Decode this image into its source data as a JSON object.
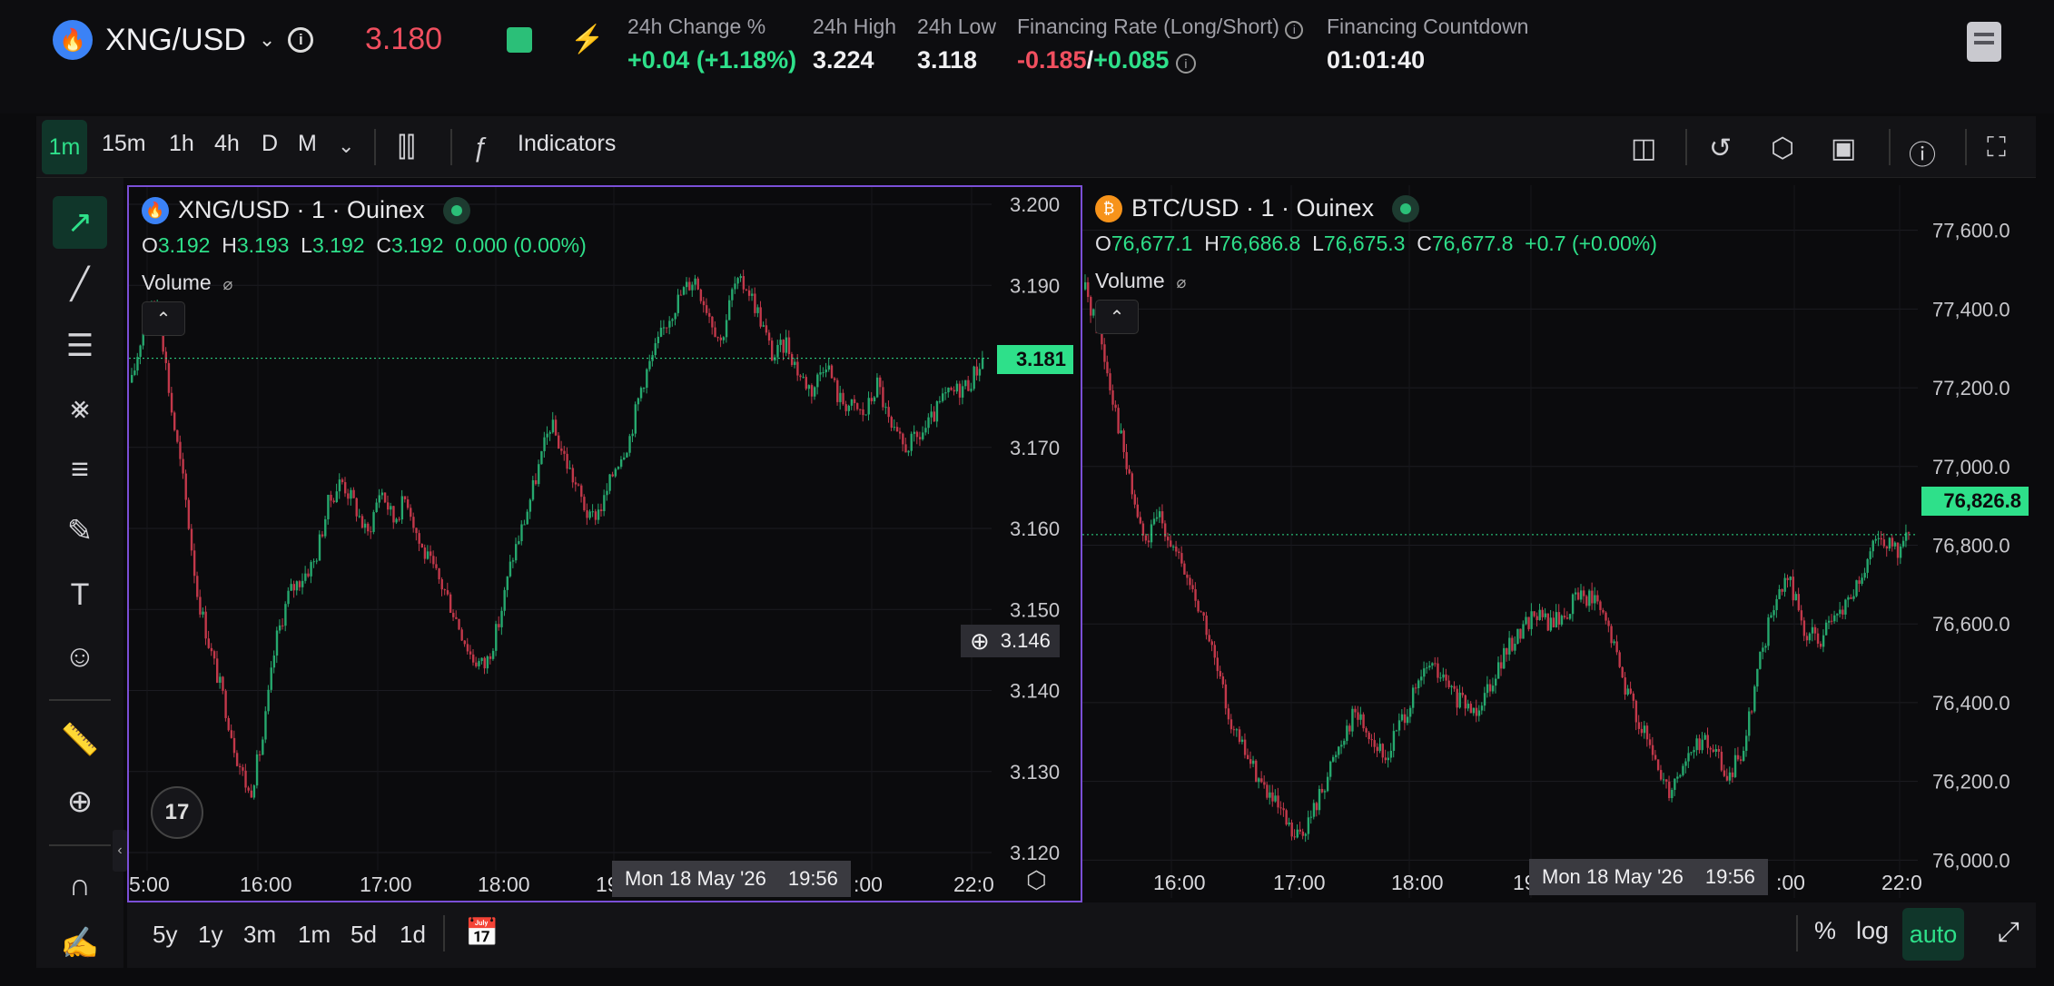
{
  "header": {
    "symbol": "XNG/USD",
    "price": "3.180",
    "stats": [
      {
        "label": "24h Change %",
        "value": "+0.04 (+1.18%)"
      },
      {
        "label": "24h High",
        "value": "3.224"
      },
      {
        "label": "24h Low",
        "value": "3.118"
      },
      {
        "label": "Financing Rate (Long/Short)",
        "value_long": "-0.185",
        "value_sep": "/",
        "value_short": "+0.085"
      },
      {
        "label": "Financing Countdown",
        "value": "01:01:40"
      }
    ],
    "colors": {
      "up": "#2ee08a",
      "down": "#f04f5f",
      "accent": "#2bbf78",
      "pane_border": "#7a4fd6"
    }
  },
  "toolbar": {
    "timeframes": [
      "1m",
      "15m",
      "1h",
      "4h",
      "D",
      "M"
    ],
    "active_timeframe": "1m",
    "indicators_label": "Indicators"
  },
  "left_tools": [
    "cursor-icon",
    "trend-line-icon",
    "fib-lines-icon",
    "pattern-icon",
    "forecast-icon",
    "brush-icon",
    "text-icon",
    "emoji-icon",
    "ruler-icon",
    "zoom-in-icon",
    "magnet-icon",
    "lock-draw-icon"
  ],
  "charts": {
    "left": {
      "title": "XNG/USD · 1 · Ouinex",
      "ohlc": {
        "o": "3.192",
        "h": "3.193",
        "l": "3.192",
        "c": "3.192",
        "chg": "0.000 (0.00%)"
      },
      "volume_label": "Volume",
      "last_price": "3.181",
      "crosshair_price": "3.146",
      "crosshair_time": {
        "date": "Mon 18 May '26",
        "time": "19:56"
      },
      "x_ticks": [
        "5:00",
        "16:00",
        "17:00",
        "18:00",
        "19",
        ":00",
        "22:0"
      ]
    },
    "right": {
      "title": "BTC/USD · 1 · Ouinex",
      "ohlc": {
        "o": "76,677.1",
        "h": "76,686.8",
        "l": "76,675.3",
        "c": "76,677.8",
        "chg": "+0.7 (+0.00%)"
      },
      "volume_label": "Volume",
      "last_price": "76,826.8",
      "crosshair_time": {
        "date": "Mon 18 May '26",
        "time": "19:56"
      },
      "x_ticks": [
        "16:00",
        "17:00",
        "18:00",
        "19",
        ":00",
        "22:0"
      ]
    }
  },
  "chart_data": [
    {
      "type": "candlestick",
      "title": "XNG/USD · 1 · Ouinex",
      "ylim": [
        3.12,
        3.2
      ],
      "y_ticks": [
        "3.200",
        "3.190",
        "3.170",
        "3.160",
        "3.150",
        "3.140",
        "3.130",
        "3.120"
      ],
      "x_ticks": [
        "5:00",
        "16:00",
        "17:00",
        "18:00",
        "19",
        ":00",
        "22:0"
      ],
      "last_value": 3.181,
      "close_path": [
        3.178,
        3.186,
        3.188,
        3.175,
        3.165,
        3.152,
        3.145,
        3.139,
        3.132,
        3.127,
        3.134,
        3.146,
        3.152,
        3.154,
        3.156,
        3.163,
        3.166,
        3.163,
        3.159,
        3.165,
        3.161,
        3.164,
        3.158,
        3.155,
        3.152,
        3.148,
        3.144,
        3.143,
        3.148,
        3.156,
        3.161,
        3.167,
        3.173,
        3.169,
        3.165,
        3.161,
        3.163,
        3.168,
        3.171,
        3.178,
        3.182,
        3.186,
        3.189,
        3.191,
        3.187,
        3.183,
        3.19,
        3.19,
        3.186,
        3.181,
        3.183,
        3.179,
        3.177,
        3.181,
        3.176,
        3.175,
        3.174,
        3.178,
        3.172,
        3.17,
        3.171,
        3.173,
        3.176,
        3.177,
        3.178,
        3.181
      ]
    },
    {
      "type": "candlestick",
      "title": "BTC/USD · 1 · Ouinex",
      "ylim": [
        75950,
        77680
      ],
      "y_ticks": [
        "77,600.0",
        "77,400.0",
        "77,200.0",
        "77,000.0",
        "76,800.0",
        "76,600.0",
        "76,400.0",
        "76,200.0",
        "76,000.0"
      ],
      "x_ticks": [
        "16:00",
        "17:00",
        "18:00",
        "19",
        ":00",
        "22:0"
      ],
      "last_value": 76826.8,
      "close_path": [
        77450,
        77330,
        77150,
        76950,
        76800,
        76880,
        76780,
        76700,
        76600,
        76450,
        76320,
        76250,
        76180,
        76120,
        76050,
        76100,
        76200,
        76300,
        76380,
        76320,
        76250,
        76350,
        76420,
        76500,
        76450,
        76400,
        76380,
        76450,
        76520,
        76580,
        76630,
        76600,
        76620,
        76680,
        76660,
        76580,
        76450,
        76350,
        76250,
        76180,
        76250,
        76300,
        76280,
        76200,
        76300,
        76500,
        76650,
        76720,
        76580,
        76560,
        76600,
        76660,
        76720,
        76830,
        76780,
        76820
      ]
    }
  ],
  "bottom": {
    "ranges": [
      "5y",
      "1y",
      "3m",
      "1m",
      "5d",
      "1d"
    ],
    "pct_label": "%",
    "log_label": "log",
    "auto_label": "auto"
  }
}
